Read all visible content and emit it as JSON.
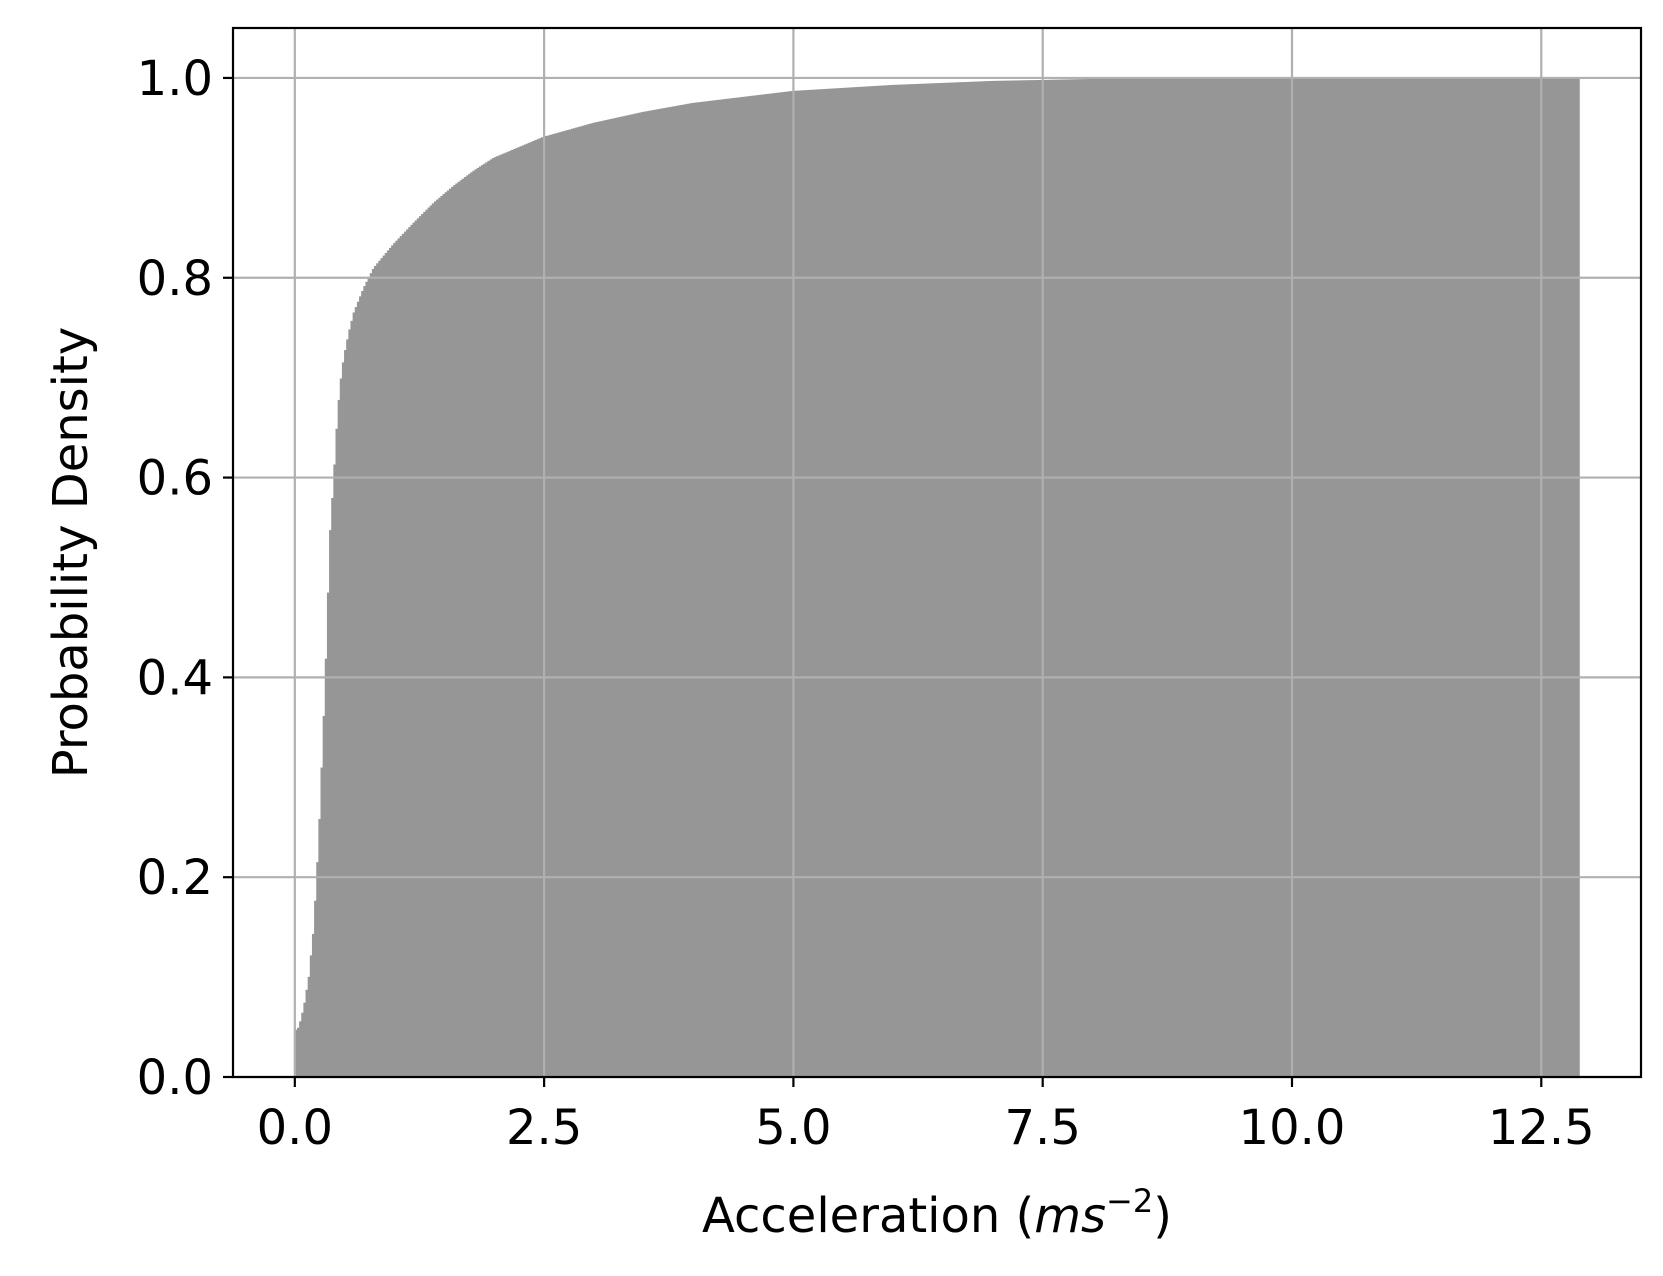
{
  "chart_data": {
    "type": "bar",
    "subtype": "cumulative-histogram",
    "title": "",
    "xlabel": {
      "prefix": "Acceleration (",
      "unit_base": "ms",
      "unit_exponent": "−2",
      "suffix": ")"
    },
    "ylabel": "Probability Density",
    "xlim": [
      -0.62,
      13.5
    ],
    "ylim": [
      0.0,
      1.05
    ],
    "x_ticks": [
      0.0,
      2.5,
      5.0,
      7.5,
      10.0,
      12.5
    ],
    "x_tick_labels": [
      "0.0",
      "2.5",
      "5.0",
      "7.5",
      "10.0",
      "12.5"
    ],
    "y_ticks": [
      0.0,
      0.2,
      0.4,
      0.6,
      0.8,
      1.0
    ],
    "y_tick_labels": [
      "0.0",
      "0.2",
      "0.4",
      "0.6",
      "0.8",
      "1.0"
    ],
    "grid": true,
    "legend": "none",
    "bar_color": "#969696",
    "grid_color": "#b0b0b0",
    "bins": {
      "x_start": 0.0,
      "x_end": 12.88
    },
    "cdf_points": {
      "x": [
        0.0,
        0.05,
        0.1,
        0.15,
        0.2,
        0.25,
        0.3,
        0.33,
        0.36,
        0.4,
        0.43,
        0.46,
        0.5,
        0.55,
        0.6,
        0.7,
        0.8,
        0.9,
        1.0,
        1.2,
        1.4,
        1.6,
        1.8,
        2.0,
        2.5,
        3.0,
        3.5,
        4.0,
        5.0,
        6.0,
        7.0,
        8.0,
        10.0,
        12.88
      ],
      "y": [
        0.045,
        0.05,
        0.07,
        0.1,
        0.15,
        0.24,
        0.36,
        0.44,
        0.54,
        0.6,
        0.65,
        0.69,
        0.72,
        0.745,
        0.765,
        0.79,
        0.81,
        0.822,
        0.834,
        0.855,
        0.875,
        0.892,
        0.907,
        0.92,
        0.941,
        0.955,
        0.966,
        0.975,
        0.987,
        0.993,
        0.997,
        0.999,
        1.0,
        1.0
      ]
    }
  }
}
